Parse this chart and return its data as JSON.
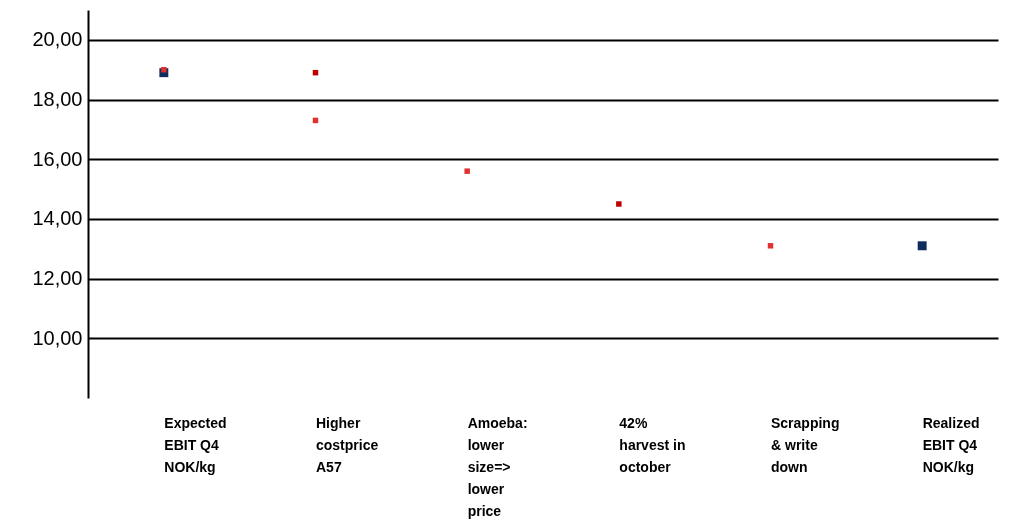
{
  "chart_data": {
    "type": "scatter",
    "categories": [
      "Expected EBIT Q4 NOK/kg",
      "Higher costprice A57",
      "Amoeba: lower size=> lower price",
      "42% harvest in october",
      "Scrapping & write down",
      "Realized EBIT Q4 NOK/kg"
    ],
    "series": [
      {
        "color": "#0f2d5c",
        "x": [
          "Expected EBIT Q4 NOK/kg",
          "Realized EBIT Q4 NOK/kg"
        ],
        "values": [
          18.9,
          13.1
        ]
      },
      {
        "color": "#c00000",
        "x": [
          "Higher costprice A57",
          "42% harvest in october"
        ],
        "values": [
          18.9,
          14.5
        ]
      },
      {
        "color": "#e03030",
        "x": [
          "Expected EBIT Q4 NOK/kg",
          "Higher costprice A57",
          "Amoeba: lower size=> lower price",
          "Scrapping & write down"
        ],
        "values": [
          19.0,
          17.3,
          15.6,
          13.1
        ]
      }
    ],
    "ylim": [
      8,
      21
    ],
    "yticks": [
      {
        "value": 10,
        "label": "10,00"
      },
      {
        "value": 12,
        "label": "12,00"
      },
      {
        "value": 14,
        "label": "14,00"
      },
      {
        "value": 16,
        "label": "16,00"
      },
      {
        "value": 18,
        "label": "18,00"
      },
      {
        "value": 20,
        "label": "20,00"
      }
    ],
    "grid": "y",
    "marker": "square"
  }
}
